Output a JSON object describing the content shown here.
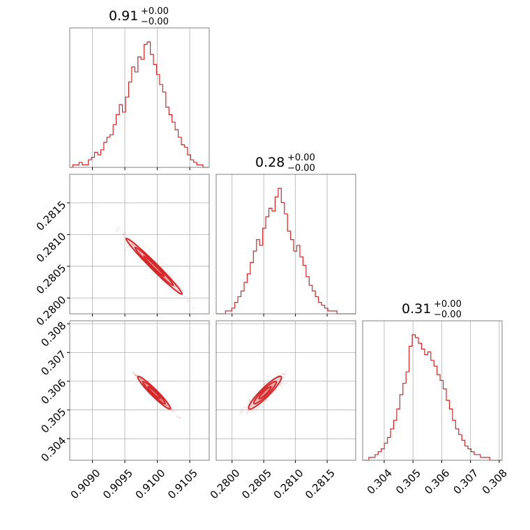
{
  "colors": {
    "accent": "#d62728",
    "fill": "#e6888a",
    "grid": "#b0b0b0",
    "frame": "#808080"
  },
  "chart_data": {
    "type": "corner",
    "grid": true,
    "parameters": [
      {
        "title_value": "0.91",
        "title_plus": "+0.00",
        "title_minus": "−0.00",
        "range": [
          0.90865,
          0.9108
        ],
        "ticks": [
          0.909,
          0.9095,
          0.91,
          0.9105
        ],
        "tick_labels": [
          "0.9090",
          "0.9095",
          "0.9100",
          "0.9105"
        ],
        "hist": [
          0,
          1,
          1,
          2,
          1,
          1,
          3,
          4,
          6,
          5,
          7,
          10,
          12,
          13,
          17,
          21,
          25,
          22,
          28,
          34,
          40,
          38,
          44,
          43,
          49,
          50,
          45,
          41,
          37,
          33,
          30,
          24,
          21,
          18,
          15,
          12,
          9,
          8,
          5,
          3,
          2,
          1,
          1,
          0,
          0
        ]
      },
      {
        "title_value": "0.28",
        "title_plus": "+0.00",
        "title_minus": "−0.00",
        "range": [
          0.27975,
          0.28195
        ],
        "ticks": [
          0.28,
          0.2805,
          0.281,
          0.2815
        ],
        "tick_labels": [
          "0.2800",
          "0.2805",
          "0.2810",
          "0.2815"
        ],
        "y_tick_labels": [
          "0.2800",
          "0.2805",
          "0.2810",
          "0.2815"
        ],
        "hist": [
          0,
          0,
          0,
          1,
          1,
          2,
          4,
          6,
          8,
          11,
          14,
          18,
          22,
          26,
          24,
          30,
          34,
          37,
          36,
          41,
          44,
          39,
          35,
          29,
          26,
          22,
          24,
          20,
          17,
          13,
          10,
          8,
          6,
          4,
          3,
          2,
          1,
          1,
          1,
          0,
          0,
          0,
          0,
          0,
          0
        ]
      },
      {
        "title_value": "0.31",
        "title_plus": "+0.00",
        "title_minus": "−0.00",
        "range": [
          0.30325,
          0.3081
        ],
        "ticks": [
          0.304,
          0.305,
          0.306,
          0.307,
          0.308
        ],
        "tick_labels": [
          "0.304",
          "0.305",
          "0.306",
          "0.307",
          "0.308"
        ],
        "y_tick_labels": [
          "0.304",
          "0.305",
          "0.306",
          "0.307",
          "0.308"
        ],
        "hist": [
          0,
          0,
          1,
          1,
          2,
          3,
          4,
          6,
          8,
          11,
          14,
          18,
          23,
          27,
          31,
          40,
          44,
          43,
          41,
          39,
          37,
          38,
          35,
          33,
          30,
          28,
          25,
          21,
          18,
          14,
          11,
          9,
          7,
          5,
          4,
          3,
          2,
          2,
          1,
          1,
          1,
          0,
          0,
          0,
          0
        ]
      }
    ],
    "pairs": [
      {
        "x_param": 0,
        "y_param": 1,
        "slope": -1.02,
        "mean": [
          0.90995,
          0.2805
        ],
        "sd_along": 0.00028,
        "sd_across": 2.2e-05
      },
      {
        "x_param": 0,
        "y_param": 2,
        "slope": -2.25,
        "mean": [
          0.90995,
          0.3056
        ],
        "sd_along": 0.00028,
        "sd_across": 7.5e-06
      },
      {
        "x_param": 1,
        "y_param": 2,
        "slope": 2.2,
        "mean": [
          0.28052,
          0.3056
        ],
        "sd_along": 0.00028,
        "sd_across": 3.5e-05
      }
    ]
  }
}
